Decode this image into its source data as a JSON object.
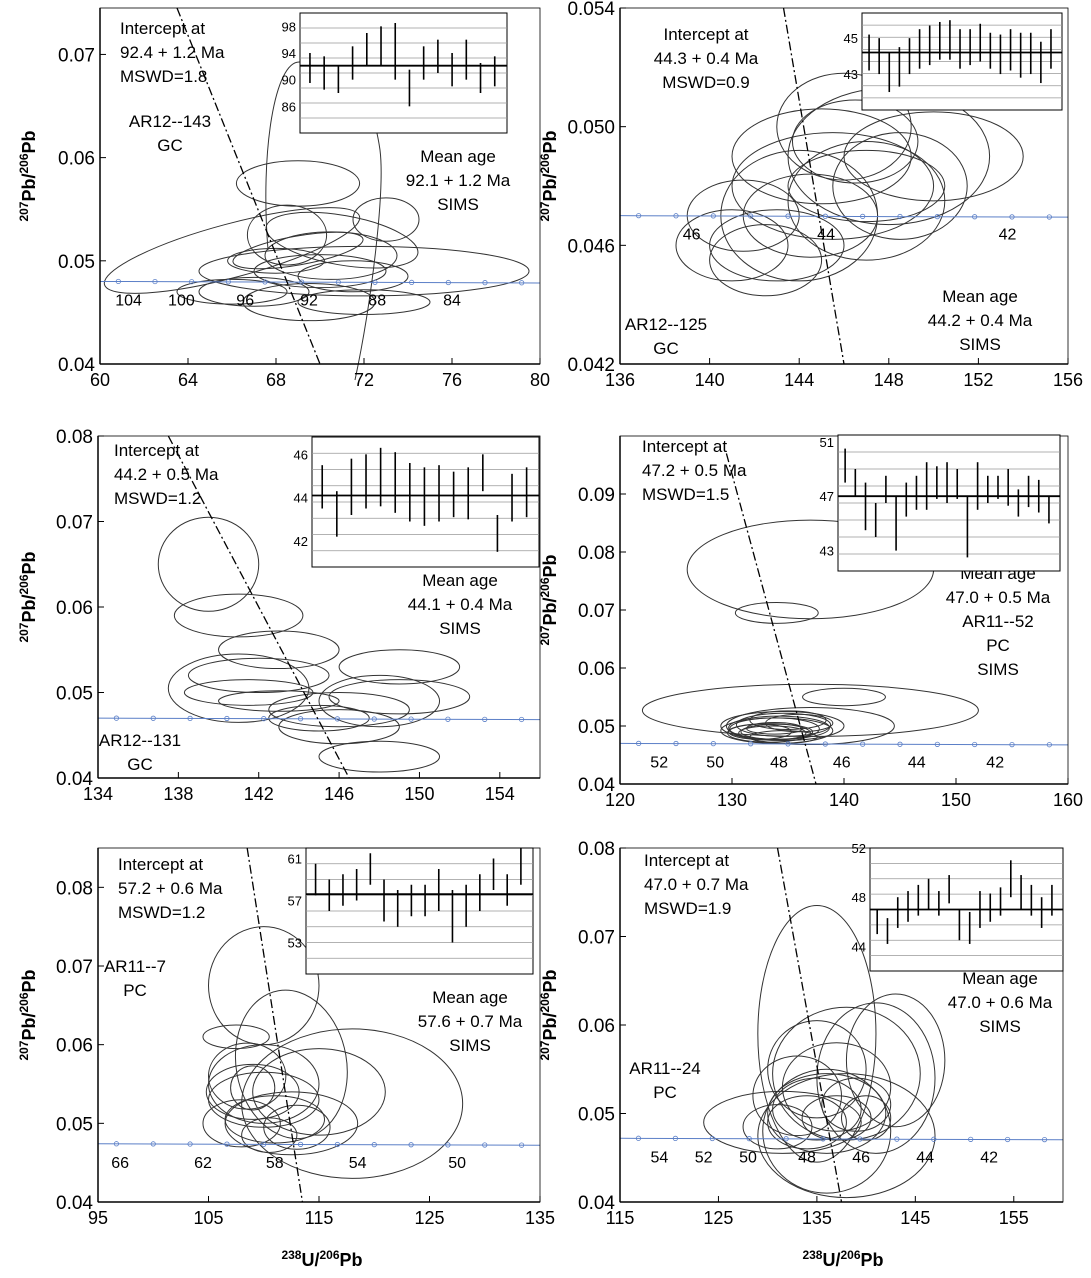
{
  "common": {
    "ylabel_parts": [
      "207",
      "Pb/",
      "206",
      "Pb"
    ],
    "xlabel_parts": [
      "238",
      "U/",
      "206",
      "Pb"
    ],
    "colors": {
      "axis": "#000000",
      "concordia": "#5b7fc7",
      "ellipse": "#333333",
      "inset_grid": "#999999"
    }
  },
  "chart_data": [
    {
      "type": "scatter",
      "name": "AR12--143",
      "x_ticks": [
        60,
        64,
        68,
        72,
        76,
        80
      ],
      "xlim": [
        60,
        80
      ],
      "y_ticks": [
        0.04,
        0.05,
        0.06,
        0.07
      ],
      "y_tick_labels": [
        "0.04",
        "0.05",
        "0.06",
        "0.07"
      ],
      "ylim": [
        0.04,
        0.0745
      ],
      "intercept": [
        "Intercept at",
        "92.4 + 1.2 Ma",
        "MSWD=1.8"
      ],
      "mean": [
        "Mean age",
        "92.1 + 1.2 Ma",
        "SIMS"
      ],
      "sample": [
        "AR12--143",
        "GC"
      ],
      "concordia_labels": [
        {
          "x": 61.3,
          "t": "104"
        },
        {
          "x": 63.7,
          "t": "100"
        },
        {
          "x": 66.6,
          "t": "96"
        },
        {
          "x": 69.5,
          "t": "92"
        },
        {
          "x": 72.6,
          "t": "88"
        },
        {
          "x": 76.0,
          "t": "84"
        }
      ],
      "inset": {
        "ymin": 82,
        "ymax": 100,
        "ticks": [
          86,
          90,
          94,
          98
        ],
        "mean": 92.1,
        "bars": [
          [
            89.5,
            94
          ],
          [
            88.5,
            93.5
          ],
          [
            88,
            92
          ],
          [
            90,
            95
          ],
          [
            92,
            97
          ],
          [
            92,
            98
          ],
          [
            90,
            98.5
          ],
          [
            86,
            91.5
          ],
          [
            90,
            95
          ],
          [
            91,
            96
          ],
          [
            89,
            94
          ],
          [
            90,
            96
          ],
          [
            88,
            92.5
          ],
          [
            89,
            93.5
          ]
        ]
      }
    },
    {
      "type": "scatter",
      "name": "AR12--125",
      "x_ticks": [
        136,
        140,
        144,
        148,
        152,
        156
      ],
      "xlim": [
        136,
        156
      ],
      "y_ticks": [
        0.042,
        0.046,
        0.05,
        0.054
      ],
      "y_tick_labels": [
        "0.042",
        "0.046",
        "0.050",
        "0.054"
      ],
      "ylim": [
        0.042,
        0.054
      ],
      "intercept": [
        "Intercept at",
        "44.3 + 0.4 Ma",
        "MSWD=0.9"
      ],
      "mean": [
        "Mean age",
        "44.2 + 0.4 Ma",
        "SIMS"
      ],
      "sample": [
        "AR12--125",
        "GC"
      ],
      "concordia_labels": [
        {
          "x": 139.2,
          "t": "46"
        },
        {
          "x": 145.2,
          "t": "44"
        },
        {
          "x": 153.3,
          "t": "42"
        }
      ],
      "inset": {
        "ymin": 41,
        "ymax": 46.4,
        "ticks": [
          43,
          45
        ],
        "mean": 44.2,
        "bars": [
          [
            43.2,
            45.2
          ],
          [
            43,
            45
          ],
          [
            42,
            44.2
          ],
          [
            42.3,
            44.5
          ],
          [
            43,
            45
          ],
          [
            43.3,
            45.5
          ],
          [
            43.5,
            45.7
          ],
          [
            43.8,
            45.9
          ],
          [
            43.8,
            46
          ],
          [
            43.3,
            45.5
          ],
          [
            43.5,
            45.5
          ],
          [
            43.7,
            45.8
          ],
          [
            43.3,
            45.3
          ],
          [
            43,
            45.2
          ],
          [
            43.2,
            45.5
          ],
          [
            42.8,
            45.3
          ],
          [
            43,
            45.3
          ],
          [
            42.5,
            44.8
          ],
          [
            43.3,
            45.5
          ]
        ]
      }
    },
    {
      "type": "scatter",
      "name": "AR12--131",
      "x_ticks": [
        134,
        138,
        142,
        146,
        150,
        154
      ],
      "xlim": [
        134,
        156
      ],
      "y_ticks": [
        0.04,
        0.05,
        0.06,
        0.07,
        0.08
      ],
      "y_tick_labels": [
        "0.04",
        "0.05",
        "0.06",
        "0.07",
        "0.08"
      ],
      "ylim": [
        0.04,
        0.08
      ],
      "intercept": [
        "Intercept at",
        "44.2 + 0.5 Ma",
        "MSWD=1.2"
      ],
      "mean": [
        "Mean age",
        "44.1 + 0.4 Ma",
        "SIMS"
      ],
      "sample": [
        "AR12--131",
        "GC"
      ],
      "concordia_labels": [],
      "inset": {
        "ymin": 40.8,
        "ymax": 46.8,
        "ticks": [
          42,
          44,
          46
        ],
        "mean": 44.1,
        "bars": [
          [
            43.5,
            45.5
          ],
          [
            42.2,
            44.3
          ],
          [
            43.2,
            45.8
          ],
          [
            43.5,
            46
          ],
          [
            43.6,
            46.3
          ],
          [
            43.3,
            46.1
          ],
          [
            42.9,
            45.6
          ],
          [
            42.7,
            45.4
          ],
          [
            42.9,
            45.5
          ],
          [
            43.1,
            45.2
          ],
          [
            43,
            45.4
          ],
          [
            44.3,
            46
          ],
          [
            41.5,
            43.2
          ],
          [
            42.9,
            45.1
          ],
          [
            43.1,
            45.4
          ]
        ]
      }
    },
    {
      "type": "scatter",
      "name": "AR11--52",
      "x_ticks": [
        120,
        130,
        140,
        150,
        160
      ],
      "xlim": [
        120,
        160
      ],
      "y_ticks": [
        0.04,
        0.05,
        0.06,
        0.07,
        0.08,
        0.09
      ],
      "y_tick_labels": [
        "0.04",
        "0.05",
        "0.06",
        "0.07",
        "0.08",
        "0.09"
      ],
      "ylim": [
        0.04,
        0.1
      ],
      "intercept": [
        "Intercept at",
        "47.2 + 0.5 Ma",
        "MSWD=1.5"
      ],
      "mean": [
        "Mean age",
        "47.0 + 0.5 Ma",
        "AR11--52",
        "PC",
        "SIMS"
      ],
      "sample": [],
      "concordia_labels": [
        {
          "x": 123.5,
          "t": "52"
        },
        {
          "x": 128.5,
          "t": "50"
        },
        {
          "x": 134.2,
          "t": "48"
        },
        {
          "x": 139.8,
          "t": "46"
        },
        {
          "x": 146.5,
          "t": "44"
        },
        {
          "x": 153.5,
          "t": "42"
        }
      ],
      "inset": {
        "ymin": 41.5,
        "ymax": 51.5,
        "ticks": [
          43,
          47,
          51
        ],
        "mean": 47.0,
        "bars": [
          [
            48,
            50.5
          ],
          [
            47,
            49
          ],
          [
            44.5,
            48
          ],
          [
            44,
            46.5
          ],
          [
            46.5,
            48.5
          ],
          [
            43,
            47
          ],
          [
            45.5,
            48
          ],
          [
            46,
            48.5
          ],
          [
            46,
            49.5
          ],
          [
            46.8,
            49.2
          ],
          [
            46.5,
            49.5
          ],
          [
            46.8,
            49
          ],
          [
            42.5,
            47
          ],
          [
            46,
            49.5
          ],
          [
            46.5,
            48.5
          ],
          [
            46.8,
            48.5
          ],
          [
            46.3,
            49
          ],
          [
            45.5,
            47.5
          ],
          [
            46.2,
            48.5
          ],
          [
            45.8,
            48.2
          ],
          [
            45,
            47
          ]
        ]
      }
    },
    {
      "type": "scatter",
      "name": "AR11--7",
      "x_ticks": [
        95,
        105,
        115,
        125,
        135
      ],
      "xlim": [
        95,
        135
      ],
      "y_ticks": [
        0.04,
        0.05,
        0.06,
        0.07,
        0.08
      ],
      "y_tick_labels": [
        "0.04",
        "0.05",
        "0.06",
        "0.07",
        "0.08"
      ],
      "ylim": [
        0.04,
        0.085
      ],
      "intercept": [
        "Intercept at",
        "57.2 + 0.6 Ma",
        "MSWD=1.2"
      ],
      "mean": [
        "Mean age",
        "57.6 + 0.7 Ma",
        "SIMS"
      ],
      "sample": [
        "AR11--7",
        "PC"
      ],
      "concordia_labels": [
        {
          "x": 97,
          "t": "66"
        },
        {
          "x": 104.5,
          "t": "62"
        },
        {
          "x": 111,
          "t": "58"
        },
        {
          "x": 118.5,
          "t": "54"
        },
        {
          "x": 127.5,
          "t": "50"
        }
      ],
      "inset": {
        "ymin": 50,
        "ymax": 62,
        "ticks": [
          53,
          57,
          61
        ],
        "mean": 57.6,
        "bars": [
          [
            57.5,
            60.5
          ],
          [
            56,
            59
          ],
          [
            56.5,
            59.5
          ],
          [
            57,
            60
          ],
          [
            58.5,
            61.5
          ],
          [
            55,
            59
          ],
          [
            54.5,
            58
          ],
          [
            55.5,
            58.5
          ],
          [
            55.5,
            58.5
          ],
          [
            56,
            60
          ],
          [
            53,
            58
          ],
          [
            54.5,
            58.5
          ],
          [
            56,
            59.5
          ],
          [
            58,
            61
          ],
          [
            56.5,
            59.5
          ],
          [
            58.5,
            62
          ]
        ]
      }
    },
    {
      "type": "scatter",
      "name": "AR11--24",
      "x_ticks": [
        115,
        125,
        135,
        145,
        155
      ],
      "xlim": [
        115,
        160
      ],
      "y_ticks": [
        0.04,
        0.05,
        0.06,
        0.07,
        0.08
      ],
      "y_tick_labels": [
        "0.04",
        "0.05",
        "0.06",
        "0.07",
        "0.08"
      ],
      "ylim": [
        0.04,
        0.08
      ],
      "intercept": [
        "Intercept at",
        "47.0 + 0.7 Ma",
        "MSWD=1.9"
      ],
      "mean": [
        "Mean age",
        "47.0 + 0.6 Ma",
        "SIMS"
      ],
      "sample": [
        "AR11--24",
        "PC"
      ],
      "concordia_labels": [
        {
          "x": 119,
          "t": "54"
        },
        {
          "x": 123.5,
          "t": "52"
        },
        {
          "x": 128,
          "t": "50"
        },
        {
          "x": 134,
          "t": "48"
        },
        {
          "x": 139.5,
          "t": "46"
        },
        {
          "x": 146,
          "t": "44"
        },
        {
          "x": 152.5,
          "t": "42"
        }
      ],
      "inset": {
        "ymin": 42,
        "ymax": 52,
        "ticks": [
          44,
          48,
          52
        ],
        "mean": 47.0,
        "bars": [
          [
            45,
            47
          ],
          [
            44.2,
            46.3
          ],
          [
            45.5,
            48
          ],
          [
            46,
            48.5
          ],
          [
            46.5,
            49
          ],
          [
            47,
            49.5
          ],
          [
            46.5,
            48.5
          ],
          [
            47.5,
            49.8
          ],
          [
            44.5,
            47
          ],
          [
            44.2,
            46.8
          ],
          [
            45.5,
            48.5
          ],
          [
            46,
            48.3
          ],
          [
            46.5,
            48.8
          ],
          [
            48,
            51
          ],
          [
            47,
            49.8
          ],
          [
            46.5,
            49
          ],
          [
            45.5,
            48
          ],
          [
            46.5,
            49
          ]
        ]
      }
    }
  ]
}
